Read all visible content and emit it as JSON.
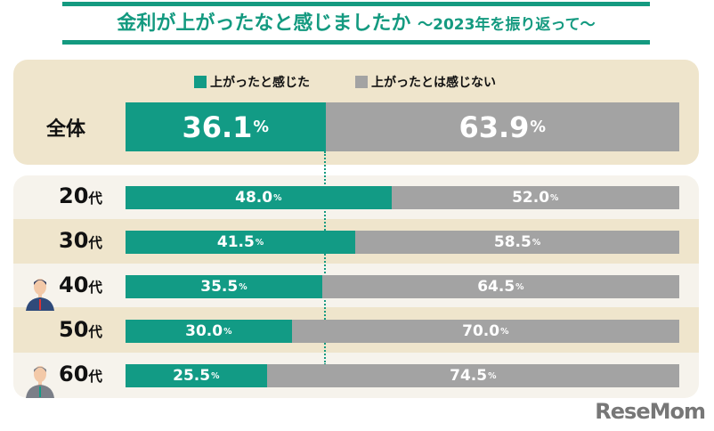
{
  "chart_data": {
    "type": "bar",
    "stacked": true,
    "orientation": "horizontal",
    "title": "金利が上がったなと感じましたか",
    "subtitle": "～2023年を振り返って～",
    "legend": [
      "上がったと感じた",
      "上がったとは感じない"
    ],
    "legend_placement": "top",
    "colors": [
      "#129b85",
      "#a3a3a3"
    ],
    "total": {
      "category": "全体",
      "values": [
        36.1,
        63.9
      ],
      "labels": [
        "36.1",
        "63.9"
      ]
    },
    "categories": [
      "20代",
      "30代",
      "40代",
      "50代",
      "60代"
    ],
    "series": [
      {
        "name": "上がったと感じた",
        "values": [
          48.0,
          41.5,
          35.5,
          30.0,
          25.5
        ],
        "labels": [
          "48.0",
          "41.5",
          "35.5",
          "30.0",
          "25.5"
        ]
      },
      {
        "name": "上がったとは感じない",
        "values": [
          52.0,
          58.5,
          64.5,
          70.0,
          74.5
        ],
        "labels": [
          "52.0",
          "58.5",
          "64.5",
          "70.0",
          "74.5"
        ]
      }
    ],
    "unit": "%",
    "xlim": [
      0,
      100
    ]
  },
  "logo": "ReseMom"
}
